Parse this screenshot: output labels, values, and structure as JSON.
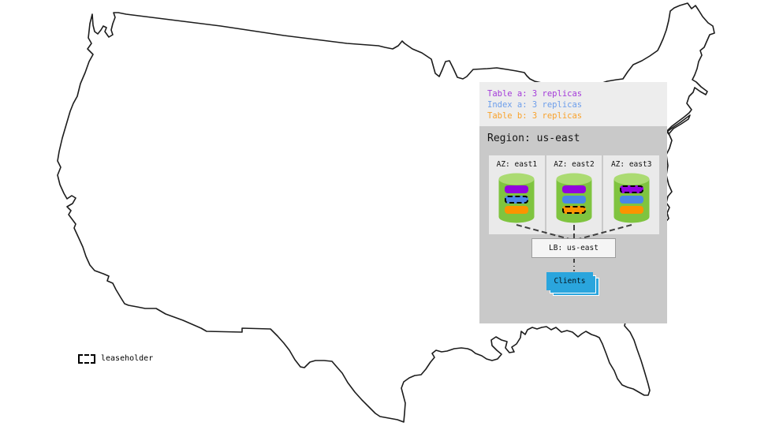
{
  "colors": {
    "map-stroke": "#1c1c1c",
    "panel-legend-bg": "#ededed",
    "region-bg": "#c9c9c9",
    "az-bg": "#eaeaea",
    "lb-bg": "#f5f5f5",
    "lb-border": "#9e9e9e",
    "clients-blue": "#2aa5dd",
    "cylinder-green": "#7fc43f",
    "cylinder-top": "#abdb72",
    "connector": "#3f3f3f"
  },
  "replica_legend": {
    "items": [
      {
        "id": "table-a",
        "label": "Table a: 3 replicas",
        "color": "#a43bd9"
      },
      {
        "id": "index-a",
        "label": "Index a: 3 replicas",
        "color": "#6d9eeb"
      },
      {
        "id": "table-b",
        "label": "Table b: 3 replicas",
        "color": "#f9a22b"
      }
    ]
  },
  "region": {
    "title": "Region: us-east",
    "azs": [
      {
        "label": "AZ: east1",
        "replicas": [
          {
            "name": "table-a",
            "color": "#9204de",
            "leaseholder": false
          },
          {
            "name": "index-a",
            "color": "#4a86e8",
            "leaseholder": true
          },
          {
            "name": "table-b",
            "color": "#fb9400",
            "leaseholder": false
          }
        ]
      },
      {
        "label": "AZ: east2",
        "replicas": [
          {
            "name": "table-a",
            "color": "#9204de",
            "leaseholder": false
          },
          {
            "name": "index-a",
            "color": "#4a86e8",
            "leaseholder": false
          },
          {
            "name": "table-b",
            "color": "#fb9400",
            "leaseholder": true
          }
        ]
      },
      {
        "label": "AZ: east3",
        "replicas": [
          {
            "name": "table-a",
            "color": "#9204de",
            "leaseholder": true
          },
          {
            "name": "index-a",
            "color": "#4a86e8",
            "leaseholder": false
          },
          {
            "name": "table-b",
            "color": "#fb9400",
            "leaseholder": false
          }
        ]
      }
    ],
    "load_balancer": {
      "label": "LB: us-east"
    },
    "clients": {
      "label": "Clients"
    }
  },
  "map_legend": {
    "leaseholder_label": "leaseholder"
  }
}
